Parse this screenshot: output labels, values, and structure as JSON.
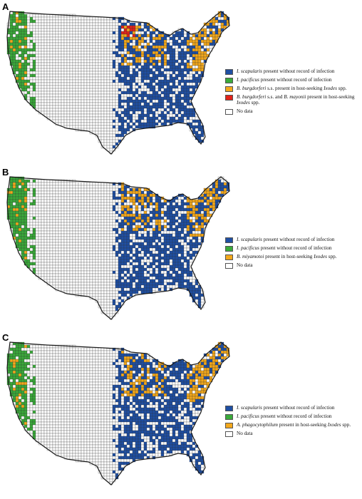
{
  "colors": {
    "scapularis": "#1f4fa3",
    "pacificus": "#3aaa3a",
    "pathogen": "#f3a81c",
    "both": "#e2231a",
    "nodata": "#ffffff",
    "border": "#1a1a1a"
  },
  "panels": [
    {
      "letter": "A",
      "legend": [
        {
          "color_key": "scapularis",
          "italic": "I. scapularis",
          "text": " present without record of infection"
        },
        {
          "color_key": "pacificus",
          "italic": "I. pacificus",
          "text": " present without record of infection"
        },
        {
          "color_key": "pathogen",
          "italic": "B. burgdorferi",
          "text": " s.s. present in host-seeking ",
          "italic2": "Ixodes",
          "text2": " spp."
        },
        {
          "color_key": "both",
          "italic": "B. burgdorferi",
          "text": " s.s. and ",
          "italic2": "B. mayonii",
          "text2": " present in host-seeking ",
          "italic3": "Ixodes",
          "text3": " spp."
        },
        {
          "color_key": "nodata",
          "italic": "",
          "text": "No data"
        }
      ]
    },
    {
      "letter": "B",
      "legend": [
        {
          "color_key": "scapularis",
          "italic": "I. scapularis",
          "text": " present without record of infection"
        },
        {
          "color_key": "pacificus",
          "italic": "I. pacificus",
          "text": " present without record of infection"
        },
        {
          "color_key": "pathogen",
          "italic": "B. miyamotoi",
          "text": " present in host-seeking ",
          "italic2": "Ixodes",
          "text2": " spp."
        },
        {
          "color_key": "nodata",
          "italic": "",
          "text": "No data"
        }
      ]
    },
    {
      "letter": "C",
      "legend": [
        {
          "color_key": "scapularis",
          "italic": "I. scapularis",
          "text": " present without record of infection"
        },
        {
          "color_key": "pacificus",
          "italic": "I. pacificus",
          "text": " present without record of infection"
        },
        {
          "color_key": "pathogen",
          "italic": "A. phagocytophilum",
          "text": " present in host-seeking ",
          "italic2": "Ixodes",
          "text2": " spp."
        },
        {
          "color_key": "nodata",
          "italic": "",
          "text": "No data"
        }
      ]
    }
  ]
}
